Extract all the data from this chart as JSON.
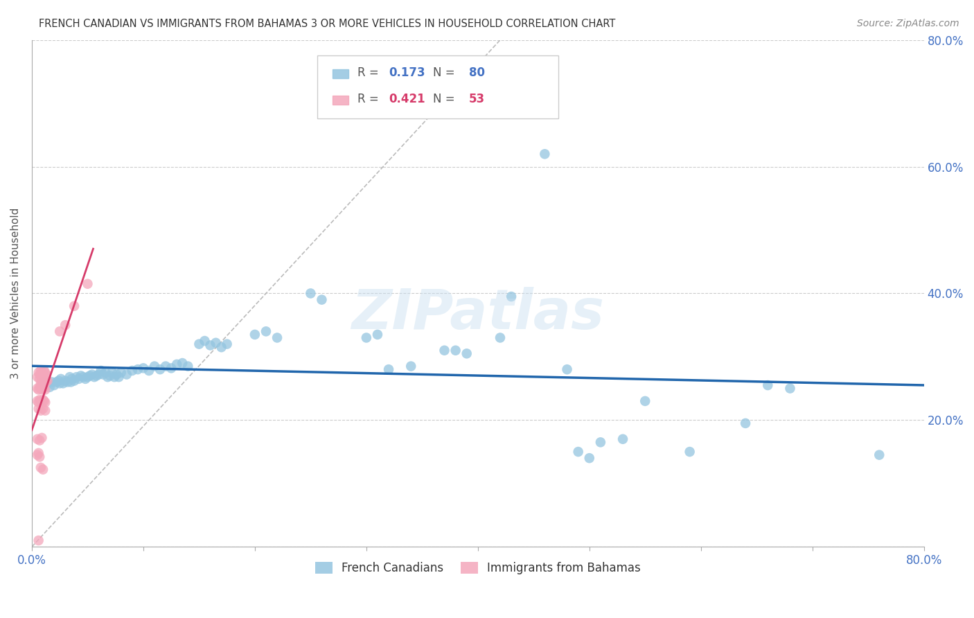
{
  "title": "FRENCH CANADIAN VS IMMIGRANTS FROM BAHAMAS 3 OR MORE VEHICLES IN HOUSEHOLD CORRELATION CHART",
  "source": "Source: ZipAtlas.com",
  "ylabel": "3 or more Vehicles in Household",
  "xlim": [
    0.0,
    0.8
  ],
  "ylim": [
    0.0,
    0.8
  ],
  "legend1_label": "French Canadians",
  "legend2_label": "Immigrants from Bahamas",
  "R1": 0.173,
  "N1": 80,
  "R2": 0.421,
  "N2": 53,
  "blue_color": "#94c5e0",
  "pink_color": "#f4a7bb",
  "blue_line_color": "#2166ac",
  "pink_line_color": "#d63b6a",
  "blue_scatter": [
    [
      0.01,
      0.26
    ],
    [
      0.012,
      0.255
    ],
    [
      0.014,
      0.258
    ],
    [
      0.016,
      0.252
    ],
    [
      0.018,
      0.26
    ],
    [
      0.02,
      0.255
    ],
    [
      0.022,
      0.26
    ],
    [
      0.024,
      0.262
    ],
    [
      0.025,
      0.258
    ],
    [
      0.026,
      0.265
    ],
    [
      0.028,
      0.258
    ],
    [
      0.03,
      0.262
    ],
    [
      0.032,
      0.26
    ],
    [
      0.034,
      0.268
    ],
    [
      0.035,
      0.26
    ],
    [
      0.036,
      0.265
    ],
    [
      0.038,
      0.262
    ],
    [
      0.04,
      0.268
    ],
    [
      0.042,
      0.265
    ],
    [
      0.044,
      0.27
    ],
    [
      0.046,
      0.268
    ],
    [
      0.048,
      0.265
    ],
    [
      0.05,
      0.268
    ],
    [
      0.052,
      0.27
    ],
    [
      0.054,
      0.272
    ],
    [
      0.056,
      0.268
    ],
    [
      0.058,
      0.27
    ],
    [
      0.06,
      0.272
    ],
    [
      0.062,
      0.278
    ],
    [
      0.064,
      0.272
    ],
    [
      0.066,
      0.275
    ],
    [
      0.068,
      0.268
    ],
    [
      0.07,
      0.27
    ],
    [
      0.072,
      0.275
    ],
    [
      0.074,
      0.268
    ],
    [
      0.076,
      0.272
    ],
    [
      0.078,
      0.268
    ],
    [
      0.08,
      0.275
    ],
    [
      0.085,
      0.272
    ],
    [
      0.09,
      0.278
    ],
    [
      0.095,
      0.28
    ],
    [
      0.1,
      0.282
    ],
    [
      0.105,
      0.278
    ],
    [
      0.11,
      0.285
    ],
    [
      0.115,
      0.28
    ],
    [
      0.12,
      0.285
    ],
    [
      0.125,
      0.282
    ],
    [
      0.13,
      0.288
    ],
    [
      0.135,
      0.29
    ],
    [
      0.14,
      0.285
    ],
    [
      0.15,
      0.32
    ],
    [
      0.155,
      0.325
    ],
    [
      0.16,
      0.318
    ],
    [
      0.165,
      0.322
    ],
    [
      0.17,
      0.315
    ],
    [
      0.175,
      0.32
    ],
    [
      0.2,
      0.335
    ],
    [
      0.21,
      0.34
    ],
    [
      0.22,
      0.33
    ],
    [
      0.25,
      0.4
    ],
    [
      0.26,
      0.39
    ],
    [
      0.3,
      0.33
    ],
    [
      0.31,
      0.335
    ],
    [
      0.32,
      0.28
    ],
    [
      0.34,
      0.285
    ],
    [
      0.37,
      0.31
    ],
    [
      0.38,
      0.31
    ],
    [
      0.39,
      0.305
    ],
    [
      0.42,
      0.33
    ],
    [
      0.43,
      0.395
    ],
    [
      0.46,
      0.62
    ],
    [
      0.48,
      0.28
    ],
    [
      0.49,
      0.15
    ],
    [
      0.5,
      0.14
    ],
    [
      0.51,
      0.165
    ],
    [
      0.53,
      0.17
    ],
    [
      0.55,
      0.23
    ],
    [
      0.59,
      0.15
    ],
    [
      0.64,
      0.195
    ],
    [
      0.66,
      0.255
    ],
    [
      0.68,
      0.25
    ],
    [
      0.76,
      0.145
    ]
  ],
  "pink_scatter": [
    [
      0.005,
      0.268
    ],
    [
      0.007,
      0.265
    ],
    [
      0.008,
      0.27
    ],
    [
      0.009,
      0.262
    ],
    [
      0.01,
      0.268
    ],
    [
      0.011,
      0.26
    ],
    [
      0.012,
      0.268
    ],
    [
      0.013,
      0.262
    ],
    [
      0.008,
      0.258
    ],
    [
      0.01,
      0.255
    ],
    [
      0.012,
      0.258
    ],
    [
      0.014,
      0.262
    ],
    [
      0.006,
      0.275
    ],
    [
      0.007,
      0.272
    ],
    [
      0.008,
      0.278
    ],
    [
      0.009,
      0.275
    ],
    [
      0.01,
      0.272
    ],
    [
      0.011,
      0.278
    ],
    [
      0.012,
      0.275
    ],
    [
      0.013,
      0.272
    ],
    [
      0.005,
      0.25
    ],
    [
      0.006,
      0.248
    ],
    [
      0.007,
      0.252
    ],
    [
      0.008,
      0.25
    ],
    [
      0.009,
      0.248
    ],
    [
      0.01,
      0.252
    ],
    [
      0.011,
      0.25
    ],
    [
      0.012,
      0.248
    ],
    [
      0.005,
      0.23
    ],
    [
      0.006,
      0.228
    ],
    [
      0.007,
      0.232
    ],
    [
      0.008,
      0.23
    ],
    [
      0.009,
      0.228
    ],
    [
      0.01,
      0.232
    ],
    [
      0.011,
      0.23
    ],
    [
      0.012,
      0.228
    ],
    [
      0.006,
      0.218
    ],
    [
      0.008,
      0.215
    ],
    [
      0.01,
      0.218
    ],
    [
      0.012,
      0.215
    ],
    [
      0.005,
      0.17
    ],
    [
      0.007,
      0.168
    ],
    [
      0.009,
      0.172
    ],
    [
      0.005,
      0.145
    ],
    [
      0.006,
      0.148
    ],
    [
      0.007,
      0.142
    ],
    [
      0.008,
      0.125
    ],
    [
      0.01,
      0.122
    ],
    [
      0.025,
      0.34
    ],
    [
      0.03,
      0.35
    ],
    [
      0.038,
      0.38
    ],
    [
      0.05,
      0.415
    ],
    [
      0.006,
      0.01
    ]
  ],
  "watermark_text": "ZIPatlas",
  "background_color": "#ffffff",
  "grid_color": "#cccccc",
  "title_color": "#333333",
  "axis_label_color": "#555555",
  "right_axis_color": "#4472c4",
  "bottom_axis_color": "#4472c4"
}
